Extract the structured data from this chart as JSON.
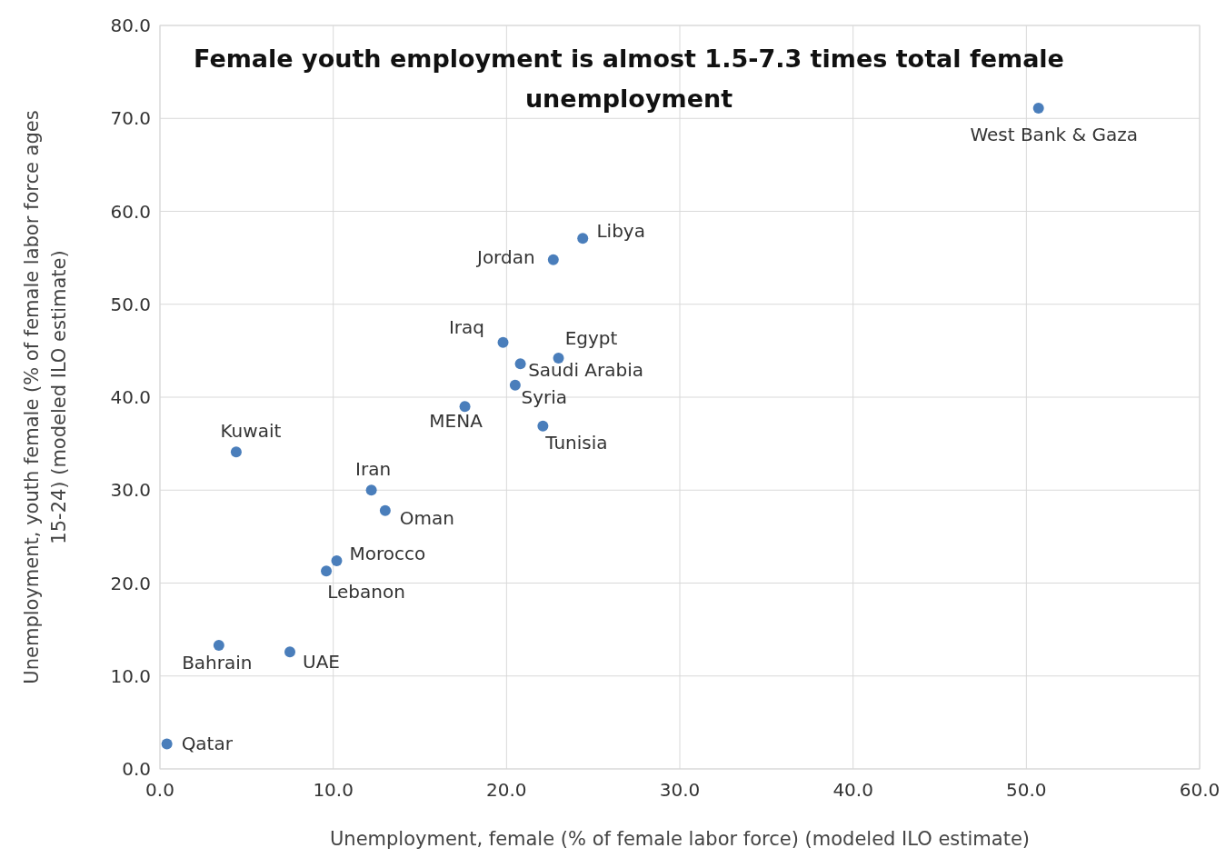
{
  "chart_data": {
    "type": "scatter",
    "title": "Female youth employment is almost 1.5-7.3 times total female unemployment",
    "xlabel": "Unemployment, female (% of female labor force) (modeled ILO estimate)",
    "ylabel": "Unemployment, youth female (% of female labor force ages 15-24) (modeled ILO estimate)",
    "x": [
      0.4,
      3.4,
      7.5,
      9.6,
      10.2,
      12.2,
      13.0,
      4.4,
      17.6,
      19.8,
      20.5,
      20.8,
      22.1,
      23.0,
      22.7,
      24.4,
      50.7
    ],
    "values": [
      2.7,
      13.3,
      12.6,
      21.3,
      22.4,
      30.0,
      27.8,
      34.1,
      39.0,
      45.9,
      41.3,
      43.6,
      36.9,
      44.2,
      54.8,
      57.1,
      71.1
    ],
    "color": "#4a7ebb",
    "marker": "circle",
    "grid": true,
    "xlim": [
      0,
      60
    ],
    "ylim": [
      0,
      80
    ],
    "xticks": [
      {
        "value": 0,
        "label": "0.0"
      },
      {
        "value": 10,
        "label": "10.0"
      },
      {
        "value": 20,
        "label": "20.0"
      },
      {
        "value": 30,
        "label": "30.0"
      },
      {
        "value": 40,
        "label": "40.0"
      },
      {
        "value": 50,
        "label": "50.0"
      },
      {
        "value": 60,
        "label": "60.0"
      }
    ],
    "yticks": [
      {
        "value": 0,
        "label": "0.0"
      },
      {
        "value": 10,
        "label": "10.0"
      },
      {
        "value": 20,
        "label": "20.0"
      },
      {
        "value": 30,
        "label": "30.0"
      },
      {
        "value": 40,
        "label": "40.0"
      },
      {
        "value": 50,
        "label": "50.0"
      },
      {
        "value": 60,
        "label": "60.0"
      },
      {
        "value": 70,
        "label": "70.0"
      },
      {
        "value": 80,
        "label": "80.0"
      }
    ],
    "annotations": [
      {
        "text": "Qatar",
        "x": 0.4,
        "y": 2.7
      },
      {
        "text": "Bahrain",
        "x": 3.4,
        "y": 13.3
      },
      {
        "text": "UAE",
        "x": 7.5,
        "y": 12.6
      },
      {
        "text": "Lebanon",
        "x": 9.6,
        "y": 21.3
      },
      {
        "text": "Morocco",
        "x": 10.2,
        "y": 22.4
      },
      {
        "text": "Iran",
        "x": 12.2,
        "y": 30.0
      },
      {
        "text": "Oman",
        "x": 13.0,
        "y": 27.8
      },
      {
        "text": "Kuwait",
        "x": 4.4,
        "y": 34.1
      },
      {
        "text": "MENA",
        "x": 17.6,
        "y": 39.0
      },
      {
        "text": "Iraq",
        "x": 19.8,
        "y": 45.9
      },
      {
        "text": "Syria",
        "x": 20.5,
        "y": 41.3
      },
      {
        "text": "Saudi Arabia",
        "x": 20.8,
        "y": 43.6
      },
      {
        "text": "Tunisia",
        "x": 22.1,
        "y": 36.9
      },
      {
        "text": "Egypt",
        "x": 23.0,
        "y": 44.2
      },
      {
        "text": "Jordan",
        "x": 22.7,
        "y": 54.8
      },
      {
        "text": "Libya",
        "x": 24.4,
        "y": 57.1
      },
      {
        "text": "West Bank & Gaza",
        "x": 50.7,
        "y": 71.1
      }
    ]
  }
}
